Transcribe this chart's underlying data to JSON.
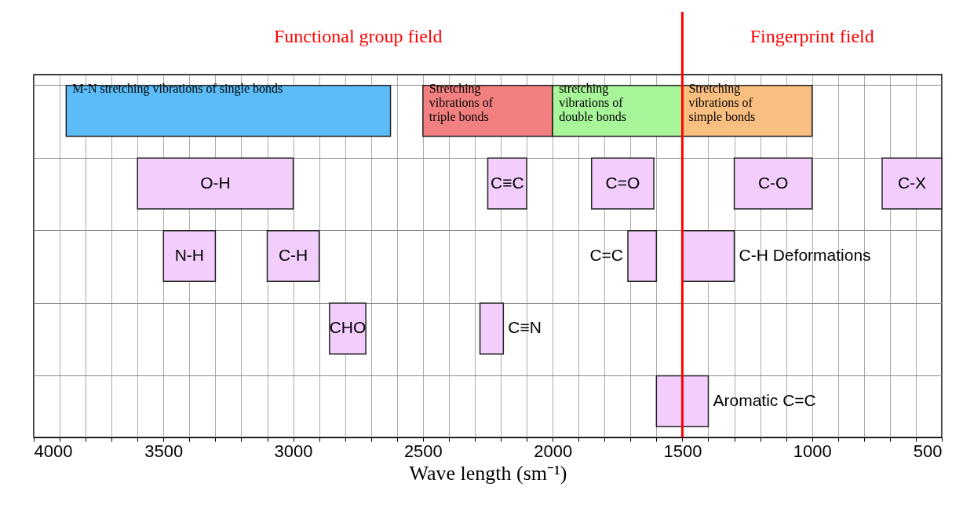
{
  "chart_data": {
    "type": "bar",
    "orientation": "horizontal",
    "xlabel": "Wave length (sm⁻¹)",
    "categories": [
      null,
      null,
      null,
      null,
      null
    ],
    "xlim": [
      4000,
      500
    ],
    "xticks": [
      4000,
      {
        "value": 3900,
        "label": null
      },
      {
        "value": 3800,
        "label": null
      },
      {
        "value": 3700,
        "label": null
      },
      {
        "value": 3600,
        "label": null
      },
      3500,
      {
        "value": 3400,
        "label": null
      },
      {
        "value": 3300,
        "label": null
      },
      {
        "value": 3200,
        "label": null
      },
      {
        "value": 3100,
        "label": null
      },
      3000,
      {
        "value": 2900,
        "label": null
      },
      {
        "value": 2800,
        "label": null
      },
      {
        "value": 2700,
        "label": null
      },
      {
        "value": 2600,
        "label": null
      },
      2500,
      {
        "value": 2400,
        "label": null
      },
      {
        "value": 2300,
        "label": null
      },
      {
        "value": 2200,
        "label": null
      },
      {
        "value": 2100,
        "label": null
      },
      2000,
      {
        "value": 1900,
        "label": null
      },
      {
        "value": 1800,
        "label": null
      },
      {
        "value": 1700,
        "label": null
      },
      {
        "value": 1600,
        "label": null
      },
      1500,
      {
        "value": 1400,
        "label": null
      },
      {
        "value": 1300,
        "label": null
      },
      {
        "value": 1200,
        "label": null
      },
      {
        "value": 1100,
        "label": null
      },
      1000,
      {
        "value": 900,
        "label": null
      },
      {
        "value": 800,
        "label": null
      },
      {
        "value": 700,
        "label": null
      },
      {
        "value": 600,
        "label": null
      },
      500
    ],
    "grid": true,
    "tick_labels": "x",
    "ref_lines": [
      {
        "axis": "x",
        "value": 1500,
        "color": "#ff0000"
      }
    ],
    "annotations": [
      "Functional group field",
      "Fingerprint field"
    ],
    "series": [
      {
        "name": "M-N stretching vibrations of single bonds",
        "color": "#5bbcf7",
        "values": [
          1250,
          null,
          null,
          null,
          null
        ],
        "base": [
          2625,
          null,
          null,
          null,
          null
        ]
      },
      {
        "name": "Stretching vibrations of triple bonds",
        "color": "#f28080",
        "values": [
          500,
          null,
          null,
          null,
          null
        ],
        "base": [
          2000,
          null,
          null,
          null,
          null
        ]
      },
      {
        "name": "stretching vibrations of double bonds",
        "color": "#a8f59a",
        "values": [
          500,
          null,
          null,
          null,
          null
        ],
        "base": [
          1500,
          null,
          null,
          null,
          null
        ]
      },
      {
        "name": "Stretching vibrations of simple bonds",
        "color": "#f9bf80",
        "values": [
          500,
          null,
          null,
          null,
          null
        ],
        "base": [
          1000,
          null,
          null,
          null,
          null
        ]
      },
      {
        "name": "O-H",
        "color": "#f3cdfc",
        "values": [
          null,
          600,
          null,
          null,
          null
        ],
        "base": [
          null,
          3000,
          null,
          null,
          null
        ]
      },
      {
        "name": "C≡C",
        "color": "#f3cdfc",
        "values": [
          null,
          150,
          null,
          null,
          null
        ],
        "base": [
          null,
          2100,
          null,
          null,
          null
        ]
      },
      {
        "name": "C=O",
        "color": "#f3cdfc",
        "values": [
          null,
          240,
          null,
          null,
          null
        ],
        "base": [
          null,
          1610,
          null,
          null,
          null
        ]
      },
      {
        "name": "C-O",
        "color": "#f3cdfc",
        "values": [
          null,
          300,
          null,
          null,
          null
        ],
        "base": [
          null,
          1000,
          null,
          null,
          null
        ]
      },
      {
        "name": "C-X",
        "color": "#f3cdfc",
        "values": [
          null,
          230,
          null,
          null,
          null
        ],
        "base": [
          null,
          500,
          null,
          null,
          null
        ]
      },
      {
        "name": "N-H",
        "color": "#f3cdfc",
        "values": [
          null,
          null,
          200,
          null,
          null
        ],
        "base": [
          null,
          null,
          3300,
          null,
          null
        ]
      },
      {
        "name": "C-H",
        "color": "#f3cdfc",
        "values": [
          null,
          null,
          200,
          null,
          null
        ],
        "base": [
          null,
          null,
          2900,
          null,
          null
        ]
      },
      {
        "name": "C=C",
        "color": "#f3cdfc",
        "values": [
          null,
          null,
          110,
          null,
          null
        ],
        "base": [
          null,
          null,
          1600,
          null,
          null
        ]
      },
      {
        "name": "C-H Deformations",
        "color": "#f3cdfc",
        "values": [
          null,
          null,
          200,
          null,
          null
        ],
        "base": [
          null,
          null,
          1300,
          null,
          null
        ]
      },
      {
        "name": "CHO",
        "color": "#f3cdfc",
        "values": [
          null,
          null,
          null,
          140,
          null
        ],
        "base": [
          null,
          null,
          null,
          2720,
          null
        ]
      },
      {
        "name": "C≡N",
        "color": "#f3cdfc",
        "values": [
          null,
          null,
          null,
          90,
          null
        ],
        "base": [
          null,
          null,
          null,
          2190,
          null
        ]
      },
      {
        "name": "Aromatic C=C",
        "color": "#f3cdfc",
        "values": [
          null,
          null,
          null,
          null,
          200
        ],
        "base": [
          null,
          null,
          null,
          null,
          1400
        ]
      }
    ]
  }
}
